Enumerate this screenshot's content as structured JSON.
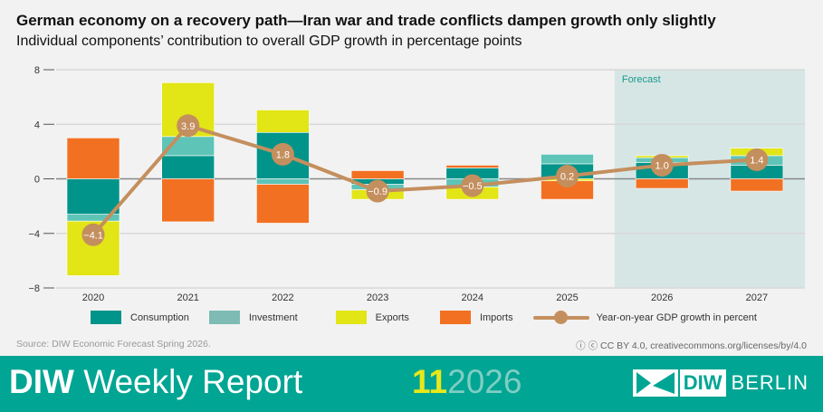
{
  "header": {
    "title": "German economy on a recovery path—Iran war and trade conflicts dampen growth only slightly",
    "subtitle": "Individual components’ contribution to overall GDP growth in percentage points"
  },
  "chart_data": {
    "type": "bar",
    "stacked": true,
    "categories": [
      "2020",
      "2021",
      "2022",
      "2023",
      "2024",
      "2025",
      "2026",
      "2027"
    ],
    "ylim": [
      -8,
      8
    ],
    "yticks": [
      "8",
      "4",
      "0",
      "−4",
      "−8"
    ],
    "ytick_values": [
      8,
      4,
      0,
      -4,
      -8
    ],
    "grid": true,
    "forecast_label": "Forecast",
    "forecast_categories": [
      "2026",
      "2027"
    ],
    "series": [
      {
        "name": "Consumption",
        "color": "#00948a",
        "values": [
          -2.6,
          1.7,
          3.4,
          -0.4,
          0.8,
          1.1,
          1.2,
          1.0
        ]
      },
      {
        "name": "Investment",
        "color": "#5fc4b8",
        "values": [
          -0.5,
          1.4,
          -0.4,
          -0.4,
          -0.6,
          0.7,
          0.35,
          0.7
        ]
      },
      {
        "name": "Exports",
        "color": "#e2e516",
        "values": [
          -4.0,
          3.95,
          1.65,
          -0.7,
          -0.9,
          -0.15,
          0.15,
          0.55
        ]
      },
      {
        "name": "Imports",
        "color": "#f27021",
        "values": [
          3.0,
          -3.15,
          -2.85,
          0.6,
          0.2,
          -1.35,
          -0.7,
          -0.9
        ]
      }
    ],
    "line": {
      "name": "Year-on-year GDP growth in percent",
      "color": "#c48f5e",
      "values": [
        -4.1,
        3.9,
        1.8,
        -0.9,
        -0.5,
        0.2,
        1.0,
        1.4
      ],
      "labels": [
        "−4.1",
        "3.9",
        "1.8",
        "−0.9",
        "−0.5",
        "0.2",
        "1.0",
        "1.4"
      ]
    }
  },
  "legend": {
    "consumption": "Consumption",
    "investment": "Investment",
    "exports": "Exports",
    "imports": "Imports",
    "gdp": "Year-on-year GDP growth in percent",
    "legend_investment_color": "#7fbbb5"
  },
  "source": "Source: DIW Economic Forecast Spring 2026.",
  "license": "CC BY 4.0, creativecommons.org/licenses/by/4.0",
  "footer": {
    "brand_bold": "DIW",
    "brand_rest": " Weekly Report",
    "issue_number": "11",
    "issue_year": "2026",
    "logo_text": "DIW",
    "logo_city": "BERLIN",
    "color": "#00a593"
  }
}
